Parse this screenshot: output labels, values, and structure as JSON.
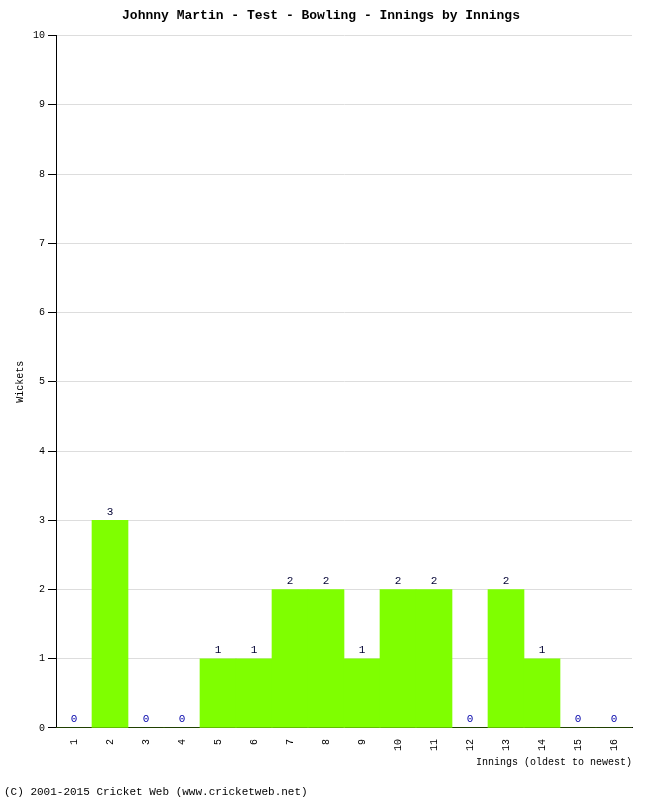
{
  "chart_data": {
    "type": "bar",
    "title": "Johnny Martin - Test - Bowling - Innings by Innings",
    "x_label": "Innings (oldest to newest)",
    "y_label": "Wickets",
    "categories": [
      "1",
      "2",
      "3",
      "4",
      "5",
      "6",
      "7",
      "8",
      "9",
      "10",
      "11",
      "12",
      "13",
      "14",
      "15",
      "16"
    ],
    "values": [
      0,
      3,
      0,
      0,
      1,
      1,
      2,
      2,
      1,
      2,
      2,
      0,
      2,
      1,
      0,
      0
    ],
    "color": "#7fff00",
    "ylim": [
      0,
      10
    ],
    "yticks": [
      0,
      1,
      2,
      3,
      4,
      5,
      6,
      7,
      8,
      9,
      10
    ],
    "grid": true,
    "data_labels": true,
    "annotations": [
      "(C) 2001-2015 Cricket Web (www.cricketweb.net)"
    ]
  }
}
